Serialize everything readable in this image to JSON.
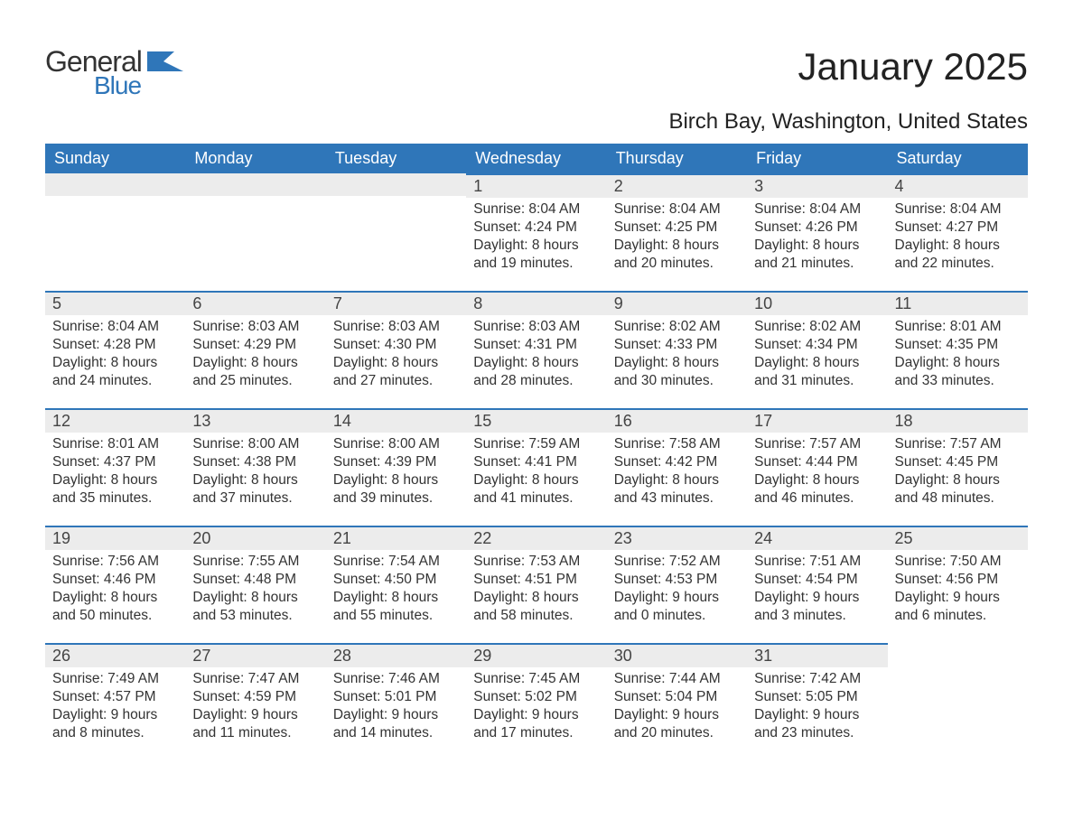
{
  "logo": {
    "line1": "General",
    "line2": "Blue"
  },
  "title": "January 2025",
  "location": "Birch Bay, Washington, United States",
  "colors": {
    "brand_blue": "#2f76b9",
    "daynum_bg": "#ececec",
    "text": "#333333",
    "week_border": "#2f76b9",
    "background": "#ffffff"
  },
  "typography": {
    "title_fontsize": 42,
    "location_fontsize": 24,
    "header_fontsize": 18,
    "daynum_fontsize": 18,
    "event_fontsize": 15.5
  },
  "layout": {
    "columns": 7,
    "rows": 5
  },
  "day_headers": [
    "Sunday",
    "Monday",
    "Tuesday",
    "Wednesday",
    "Thursday",
    "Friday",
    "Saturday"
  ],
  "weeks": [
    [
      null,
      null,
      null,
      {
        "n": "1",
        "sunrise": "Sunrise: 8:04 AM",
        "sunset": "Sunset: 4:24 PM",
        "dl1": "Daylight: 8 hours",
        "dl2": "and 19 minutes."
      },
      {
        "n": "2",
        "sunrise": "Sunrise: 8:04 AM",
        "sunset": "Sunset: 4:25 PM",
        "dl1": "Daylight: 8 hours",
        "dl2": "and 20 minutes."
      },
      {
        "n": "3",
        "sunrise": "Sunrise: 8:04 AM",
        "sunset": "Sunset: 4:26 PM",
        "dl1": "Daylight: 8 hours",
        "dl2": "and 21 minutes."
      },
      {
        "n": "4",
        "sunrise": "Sunrise: 8:04 AM",
        "sunset": "Sunset: 4:27 PM",
        "dl1": "Daylight: 8 hours",
        "dl2": "and 22 minutes."
      }
    ],
    [
      {
        "n": "5",
        "sunrise": "Sunrise: 8:04 AM",
        "sunset": "Sunset: 4:28 PM",
        "dl1": "Daylight: 8 hours",
        "dl2": "and 24 minutes."
      },
      {
        "n": "6",
        "sunrise": "Sunrise: 8:03 AM",
        "sunset": "Sunset: 4:29 PM",
        "dl1": "Daylight: 8 hours",
        "dl2": "and 25 minutes."
      },
      {
        "n": "7",
        "sunrise": "Sunrise: 8:03 AM",
        "sunset": "Sunset: 4:30 PM",
        "dl1": "Daylight: 8 hours",
        "dl2": "and 27 minutes."
      },
      {
        "n": "8",
        "sunrise": "Sunrise: 8:03 AM",
        "sunset": "Sunset: 4:31 PM",
        "dl1": "Daylight: 8 hours",
        "dl2": "and 28 minutes."
      },
      {
        "n": "9",
        "sunrise": "Sunrise: 8:02 AM",
        "sunset": "Sunset: 4:33 PM",
        "dl1": "Daylight: 8 hours",
        "dl2": "and 30 minutes."
      },
      {
        "n": "10",
        "sunrise": "Sunrise: 8:02 AM",
        "sunset": "Sunset: 4:34 PM",
        "dl1": "Daylight: 8 hours",
        "dl2": "and 31 minutes."
      },
      {
        "n": "11",
        "sunrise": "Sunrise: 8:01 AM",
        "sunset": "Sunset: 4:35 PM",
        "dl1": "Daylight: 8 hours",
        "dl2": "and 33 minutes."
      }
    ],
    [
      {
        "n": "12",
        "sunrise": "Sunrise: 8:01 AM",
        "sunset": "Sunset: 4:37 PM",
        "dl1": "Daylight: 8 hours",
        "dl2": "and 35 minutes."
      },
      {
        "n": "13",
        "sunrise": "Sunrise: 8:00 AM",
        "sunset": "Sunset: 4:38 PM",
        "dl1": "Daylight: 8 hours",
        "dl2": "and 37 minutes."
      },
      {
        "n": "14",
        "sunrise": "Sunrise: 8:00 AM",
        "sunset": "Sunset: 4:39 PM",
        "dl1": "Daylight: 8 hours",
        "dl2": "and 39 minutes."
      },
      {
        "n": "15",
        "sunrise": "Sunrise: 7:59 AM",
        "sunset": "Sunset: 4:41 PM",
        "dl1": "Daylight: 8 hours",
        "dl2": "and 41 minutes."
      },
      {
        "n": "16",
        "sunrise": "Sunrise: 7:58 AM",
        "sunset": "Sunset: 4:42 PM",
        "dl1": "Daylight: 8 hours",
        "dl2": "and 43 minutes."
      },
      {
        "n": "17",
        "sunrise": "Sunrise: 7:57 AM",
        "sunset": "Sunset: 4:44 PM",
        "dl1": "Daylight: 8 hours",
        "dl2": "and 46 minutes."
      },
      {
        "n": "18",
        "sunrise": "Sunrise: 7:57 AM",
        "sunset": "Sunset: 4:45 PM",
        "dl1": "Daylight: 8 hours",
        "dl2": "and 48 minutes."
      }
    ],
    [
      {
        "n": "19",
        "sunrise": "Sunrise: 7:56 AM",
        "sunset": "Sunset: 4:46 PM",
        "dl1": "Daylight: 8 hours",
        "dl2": "and 50 minutes."
      },
      {
        "n": "20",
        "sunrise": "Sunrise: 7:55 AM",
        "sunset": "Sunset: 4:48 PM",
        "dl1": "Daylight: 8 hours",
        "dl2": "and 53 minutes."
      },
      {
        "n": "21",
        "sunrise": "Sunrise: 7:54 AM",
        "sunset": "Sunset: 4:50 PM",
        "dl1": "Daylight: 8 hours",
        "dl2": "and 55 minutes."
      },
      {
        "n": "22",
        "sunrise": "Sunrise: 7:53 AM",
        "sunset": "Sunset: 4:51 PM",
        "dl1": "Daylight: 8 hours",
        "dl2": "and 58 minutes."
      },
      {
        "n": "23",
        "sunrise": "Sunrise: 7:52 AM",
        "sunset": "Sunset: 4:53 PM",
        "dl1": "Daylight: 9 hours",
        "dl2": "and 0 minutes."
      },
      {
        "n": "24",
        "sunrise": "Sunrise: 7:51 AM",
        "sunset": "Sunset: 4:54 PM",
        "dl1": "Daylight: 9 hours",
        "dl2": "and 3 minutes."
      },
      {
        "n": "25",
        "sunrise": "Sunrise: 7:50 AM",
        "sunset": "Sunset: 4:56 PM",
        "dl1": "Daylight: 9 hours",
        "dl2": "and 6 minutes."
      }
    ],
    [
      {
        "n": "26",
        "sunrise": "Sunrise: 7:49 AM",
        "sunset": "Sunset: 4:57 PM",
        "dl1": "Daylight: 9 hours",
        "dl2": "and 8 minutes."
      },
      {
        "n": "27",
        "sunrise": "Sunrise: 7:47 AM",
        "sunset": "Sunset: 4:59 PM",
        "dl1": "Daylight: 9 hours",
        "dl2": "and 11 minutes."
      },
      {
        "n": "28",
        "sunrise": "Sunrise: 7:46 AM",
        "sunset": "Sunset: 5:01 PM",
        "dl1": "Daylight: 9 hours",
        "dl2": "and 14 minutes."
      },
      {
        "n": "29",
        "sunrise": "Sunrise: 7:45 AM",
        "sunset": "Sunset: 5:02 PM",
        "dl1": "Daylight: 9 hours",
        "dl2": "and 17 minutes."
      },
      {
        "n": "30",
        "sunrise": "Sunrise: 7:44 AM",
        "sunset": "Sunset: 5:04 PM",
        "dl1": "Daylight: 9 hours",
        "dl2": "and 20 minutes."
      },
      {
        "n": "31",
        "sunrise": "Sunrise: 7:42 AM",
        "sunset": "Sunset: 5:05 PM",
        "dl1": "Daylight: 9 hours",
        "dl2": "and 23 minutes."
      },
      null
    ]
  ]
}
